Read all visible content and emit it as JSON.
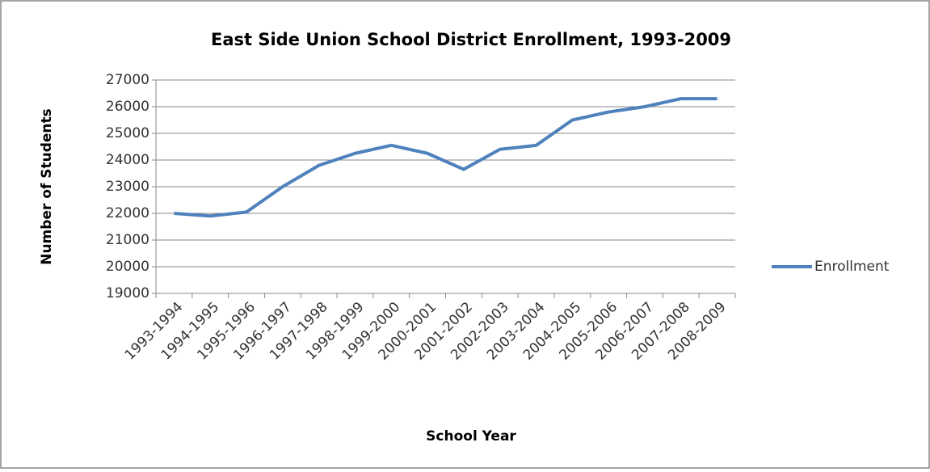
{
  "chart_data": {
    "type": "line",
    "title": "East Side Union School District Enrollment, 1993-2009",
    "x_label": "School Year",
    "y_label": "Number of Students",
    "categories": [
      "1993-1994",
      "1994-1995",
      "1995-1996",
      "1996-1997",
      "1997-1998",
      "1998-1999",
      "1999-2000",
      "2000-2001",
      "2001-2002",
      "2002-2003",
      "2003-2004",
      "2004-2005",
      "2005-2006",
      "2006-2007",
      "2007-2008",
      "2008-2009"
    ],
    "series": [
      {
        "name": "Enrollment",
        "color": "#4f81bd",
        "values": [
          22000,
          21900,
          22050,
          23000,
          23800,
          24250,
          24550,
          24250,
          23650,
          24400,
          24550,
          25500,
          25800,
          26000,
          26300,
          26300
        ]
      }
    ],
    "ylim": [
      19000,
      27000
    ],
    "yticks": [
      19000,
      20000,
      21000,
      22000,
      23000,
      24000,
      25000,
      26000,
      27000
    ],
    "grid": true,
    "legend": "right"
  }
}
